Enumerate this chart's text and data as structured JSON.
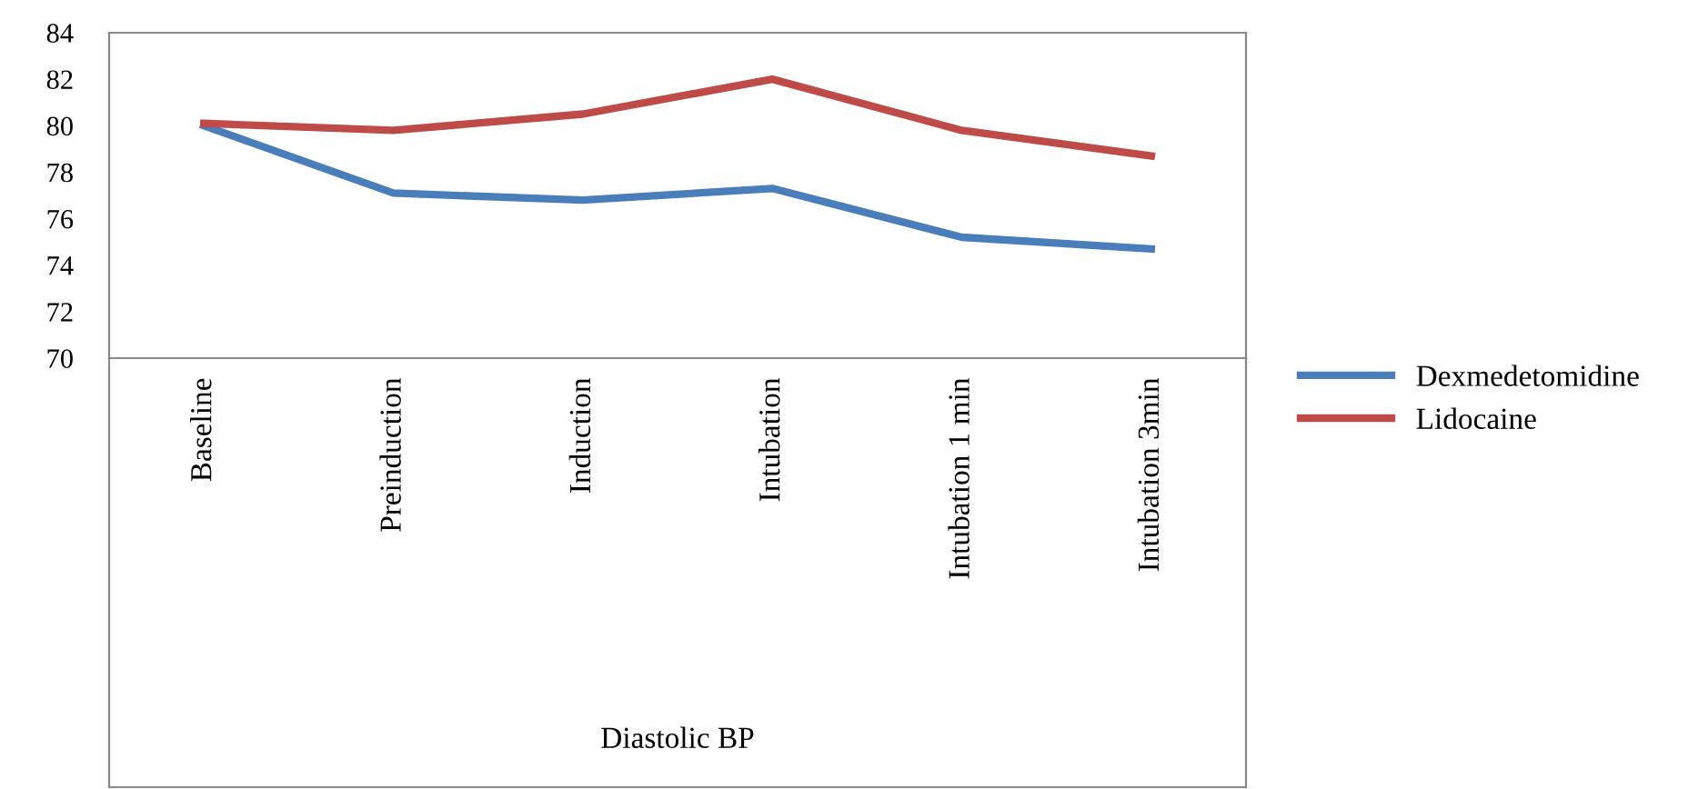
{
  "chart_data": {
    "type": "line",
    "xlabel": "Diastolic BP",
    "categories": [
      "Baseline",
      "Preinduction",
      "Induction",
      "Intubation",
      "Intubation 1 min",
      "Intubation 3min"
    ],
    "series": [
      {
        "name": "Dexmedetomidine",
        "color": "#4a7ebb",
        "values": [
          80.0,
          77.1,
          76.8,
          77.3,
          75.2,
          74.7
        ]
      },
      {
        "name": "Lidocaine",
        "color": "#be4b48",
        "values": [
          80.1,
          79.8,
          80.5,
          82.0,
          79.8,
          78.7
        ]
      }
    ],
    "ylim": [
      70,
      84
    ],
    "yticks": [
      70,
      72,
      74,
      76,
      78,
      80,
      82,
      84
    ],
    "grid": false,
    "legend": "right",
    "marker": "none",
    "line_style": "solid"
  }
}
